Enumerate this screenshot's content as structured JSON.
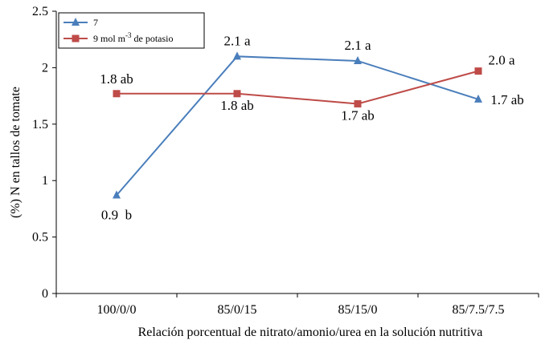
{
  "chart_data": {
    "type": "line",
    "title": "",
    "xlabel": "Relación porcentual de nitrato/amonio/urea en la solución nutritiva",
    "ylabel": "(%) N en tallos de tomate",
    "categories": [
      "100/0/0",
      "85/0/15",
      "85/15/0",
      "85/7.5/7.5"
    ],
    "ylim": [
      0,
      2.5
    ],
    "yticks": [
      0,
      0.5,
      1,
      1.5,
      2,
      2.5
    ],
    "ytick_labels": [
      "0",
      "0.5",
      "1",
      "1.5",
      "2",
      "2.5"
    ],
    "grid": false,
    "legend_position": "top-left",
    "series": [
      {
        "name": "7",
        "color": "#4a7ebb",
        "marker": "triangle",
        "values": [
          0.87,
          2.1,
          2.06,
          1.72
        ],
        "labels": [
          "0.9  b",
          "2.1 a",
          "2.1 a",
          "1.7 ab"
        ]
      },
      {
        "name": "9 mol m-3 de potasio",
        "name_parts": {
          "base": "9 mol m",
          "sup": "-3",
          "tail": " de potasio"
        },
        "color": "#be4b48",
        "marker": "square",
        "values": [
          1.77,
          1.77,
          1.68,
          1.97
        ],
        "labels": [
          "1.8 ab",
          "1.8 ab",
          "1.7 ab",
          "2.0 a"
        ]
      }
    ]
  }
}
